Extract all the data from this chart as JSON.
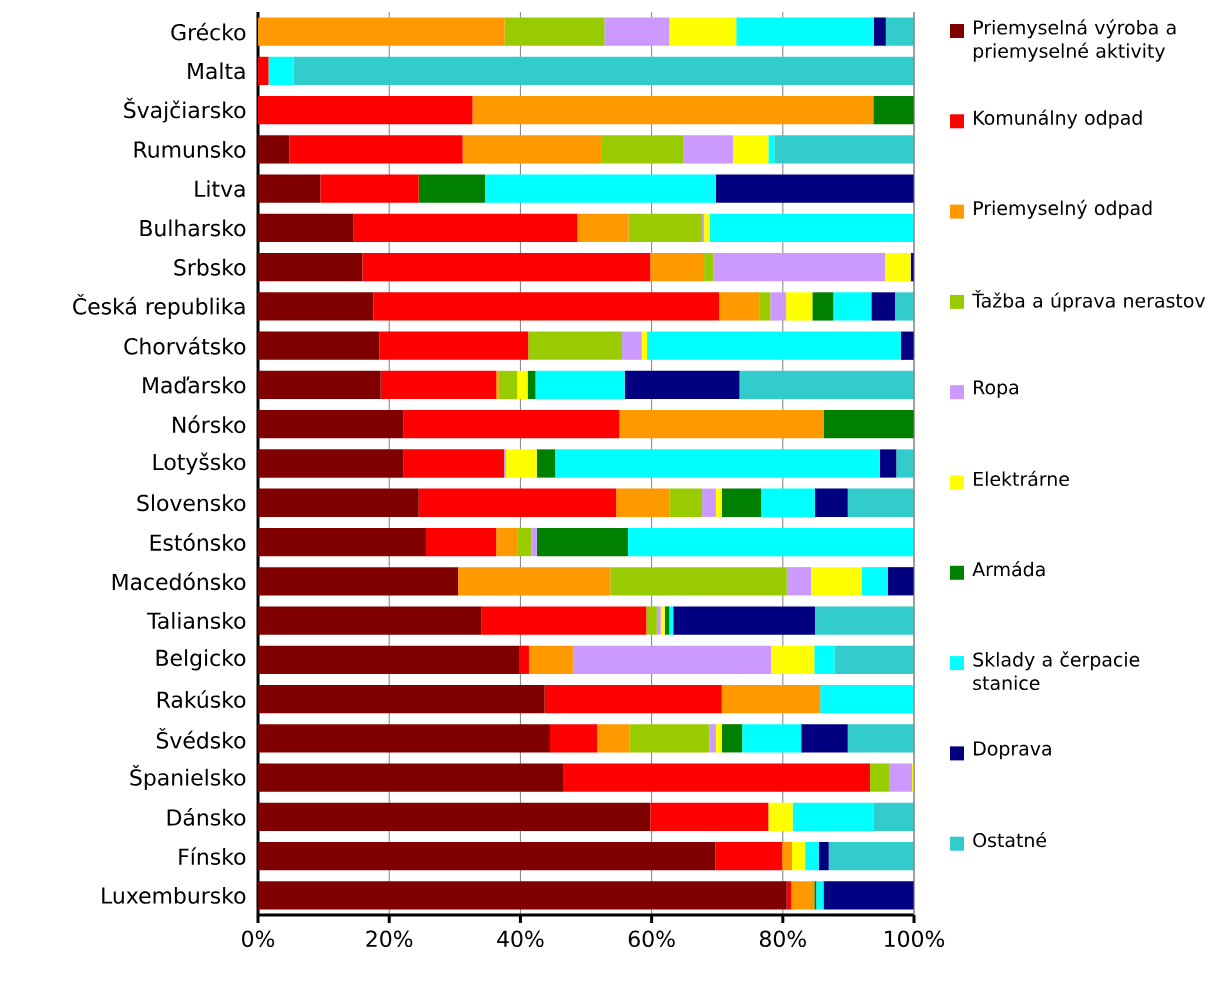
{
  "chart_data": {
    "type": "bar",
    "orientation": "horizontal",
    "stacked": true,
    "categories": [
      "Grécko",
      "Malta",
      "Švajčiarsko",
      "Rumunsko",
      "Litva",
      "Bulharsko",
      "Srbsko",
      "Česká republika",
      "Chorvátsko",
      "Maďarsko",
      "Nórsko",
      "Lotyšsko",
      "Slovensko",
      "Estónsko",
      "Macedónsko",
      "Taliansko",
      "Belgicko",
      "Rakúsko",
      "Švédsko",
      "Španielsko",
      "Dánsko",
      "Fínsko",
      "Luxembursko"
    ],
    "series": [
      {
        "name": "Priemyselná výroba a priemyselné aktivity",
        "color": "#800000",
        "values": [
          0,
          0,
          0,
          4.8,
          9.5,
          14.5,
          15.9,
          17.6,
          18.5,
          18.7,
          22.2,
          22.2,
          24.5,
          25.6,
          30.5,
          34.1,
          39.9,
          43.7,
          44.5,
          46.5,
          59.8,
          69.7,
          80.6
        ]
      },
      {
        "name": "Komunálny odpad",
        "color": "#ff0000",
        "values": [
          0,
          1.6,
          32.7,
          26.4,
          15.0,
          34.2,
          43.9,
          52.7,
          22.7,
          17.6,
          32.9,
          15.3,
          30.1,
          10.7,
          0,
          25.1,
          1.4,
          27.0,
          7.2,
          46.8,
          18.0,
          10.2,
          0.7
        ]
      },
      {
        "name": "Priemyselný odpad",
        "color": "#ff9900",
        "values": [
          37.6,
          0,
          61.1,
          21.1,
          0,
          7.8,
          8.2,
          6.2,
          0,
          0.4,
          31.1,
          0,
          8.1,
          3.2,
          23.2,
          0,
          6.7,
          15.0,
          4.9,
          0,
          0,
          1.5,
          3.5
        ]
      },
      {
        "name": "Ťažba a úprava nerastov",
        "color": "#99cc00",
        "values": [
          15.2,
          0,
          0,
          12.5,
          0,
          11.2,
          1.4,
          1.6,
          14.3,
          2.8,
          0,
          0,
          5.0,
          2.2,
          26.9,
          1.6,
          0,
          0,
          12.2,
          3.0,
          0,
          0,
          0
        ]
      },
      {
        "name": "Ropa",
        "color": "#cc99ff",
        "values": [
          9.9,
          0,
          0,
          7.6,
          0,
          0.3,
          26.2,
          2.4,
          3.0,
          0,
          0,
          0.3,
          2.1,
          0.8,
          3.7,
          0.6,
          30.2,
          0,
          1.0,
          3.4,
          0,
          0,
          0
        ]
      },
      {
        "name": "Elektrárne",
        "color": "#ffff00",
        "values": [
          10.2,
          0,
          0,
          5.4,
          0,
          0.9,
          3.9,
          4.0,
          0.8,
          1.6,
          0,
          4.7,
          0.9,
          0,
          7.7,
          0.6,
          6.6,
          0,
          0.9,
          0.3,
          3.7,
          2.0,
          0
        ]
      },
      {
        "name": "Armáda",
        "color": "#008000",
        "values": [
          0,
          0,
          6.2,
          0,
          10.1,
          0,
          0,
          3.2,
          0,
          1.2,
          13.8,
          2.8,
          6.0,
          13.9,
          0,
          0.7,
          0,
          0,
          3.1,
          0,
          0,
          0,
          0.3
        ]
      },
      {
        "name": "Sklady a čerpacie stanice",
        "color": "#00ffff",
        "values": [
          21.0,
          3.8,
          0,
          0.9,
          35.2,
          31.1,
          0,
          5.8,
          38.7,
          13.6,
          0,
          49.5,
          8.2,
          43.6,
          4.0,
          0.6,
          3.1,
          14.3,
          9.0,
          0,
          12.3,
          2.1,
          1.1
        ]
      },
      {
        "name": "Doprava",
        "color": "#000080",
        "values": [
          1.8,
          0,
          0,
          0,
          30.2,
          0,
          0.5,
          3.6,
          2.0,
          17.5,
          0,
          2.5,
          5.0,
          0,
          4.0,
          21.6,
          0,
          0,
          7.1,
          0,
          0,
          1.5,
          13.8
        ]
      },
      {
        "name": "Ostatné",
        "color": "#33cccc",
        "values": [
          4.3,
          94.6,
          0,
          21.3,
          0,
          0,
          0,
          2.9,
          0,
          26.6,
          0,
          2.7,
          10.1,
          0,
          0,
          15.1,
          12.1,
          0,
          10.1,
          0,
          6.2,
          13.0,
          0
        ]
      }
    ],
    "xlim": [
      0,
      100
    ],
    "xticks": [
      {
        "value": 0,
        "label": "0%"
      },
      {
        "value": 20,
        "label": "20%"
      },
      {
        "value": 40,
        "label": "40%"
      },
      {
        "value": 60,
        "label": "60%"
      },
      {
        "value": 80,
        "label": "80%"
      },
      {
        "value": 100,
        "label": "100%"
      }
    ],
    "grid": "x",
    "legend": "right"
  }
}
